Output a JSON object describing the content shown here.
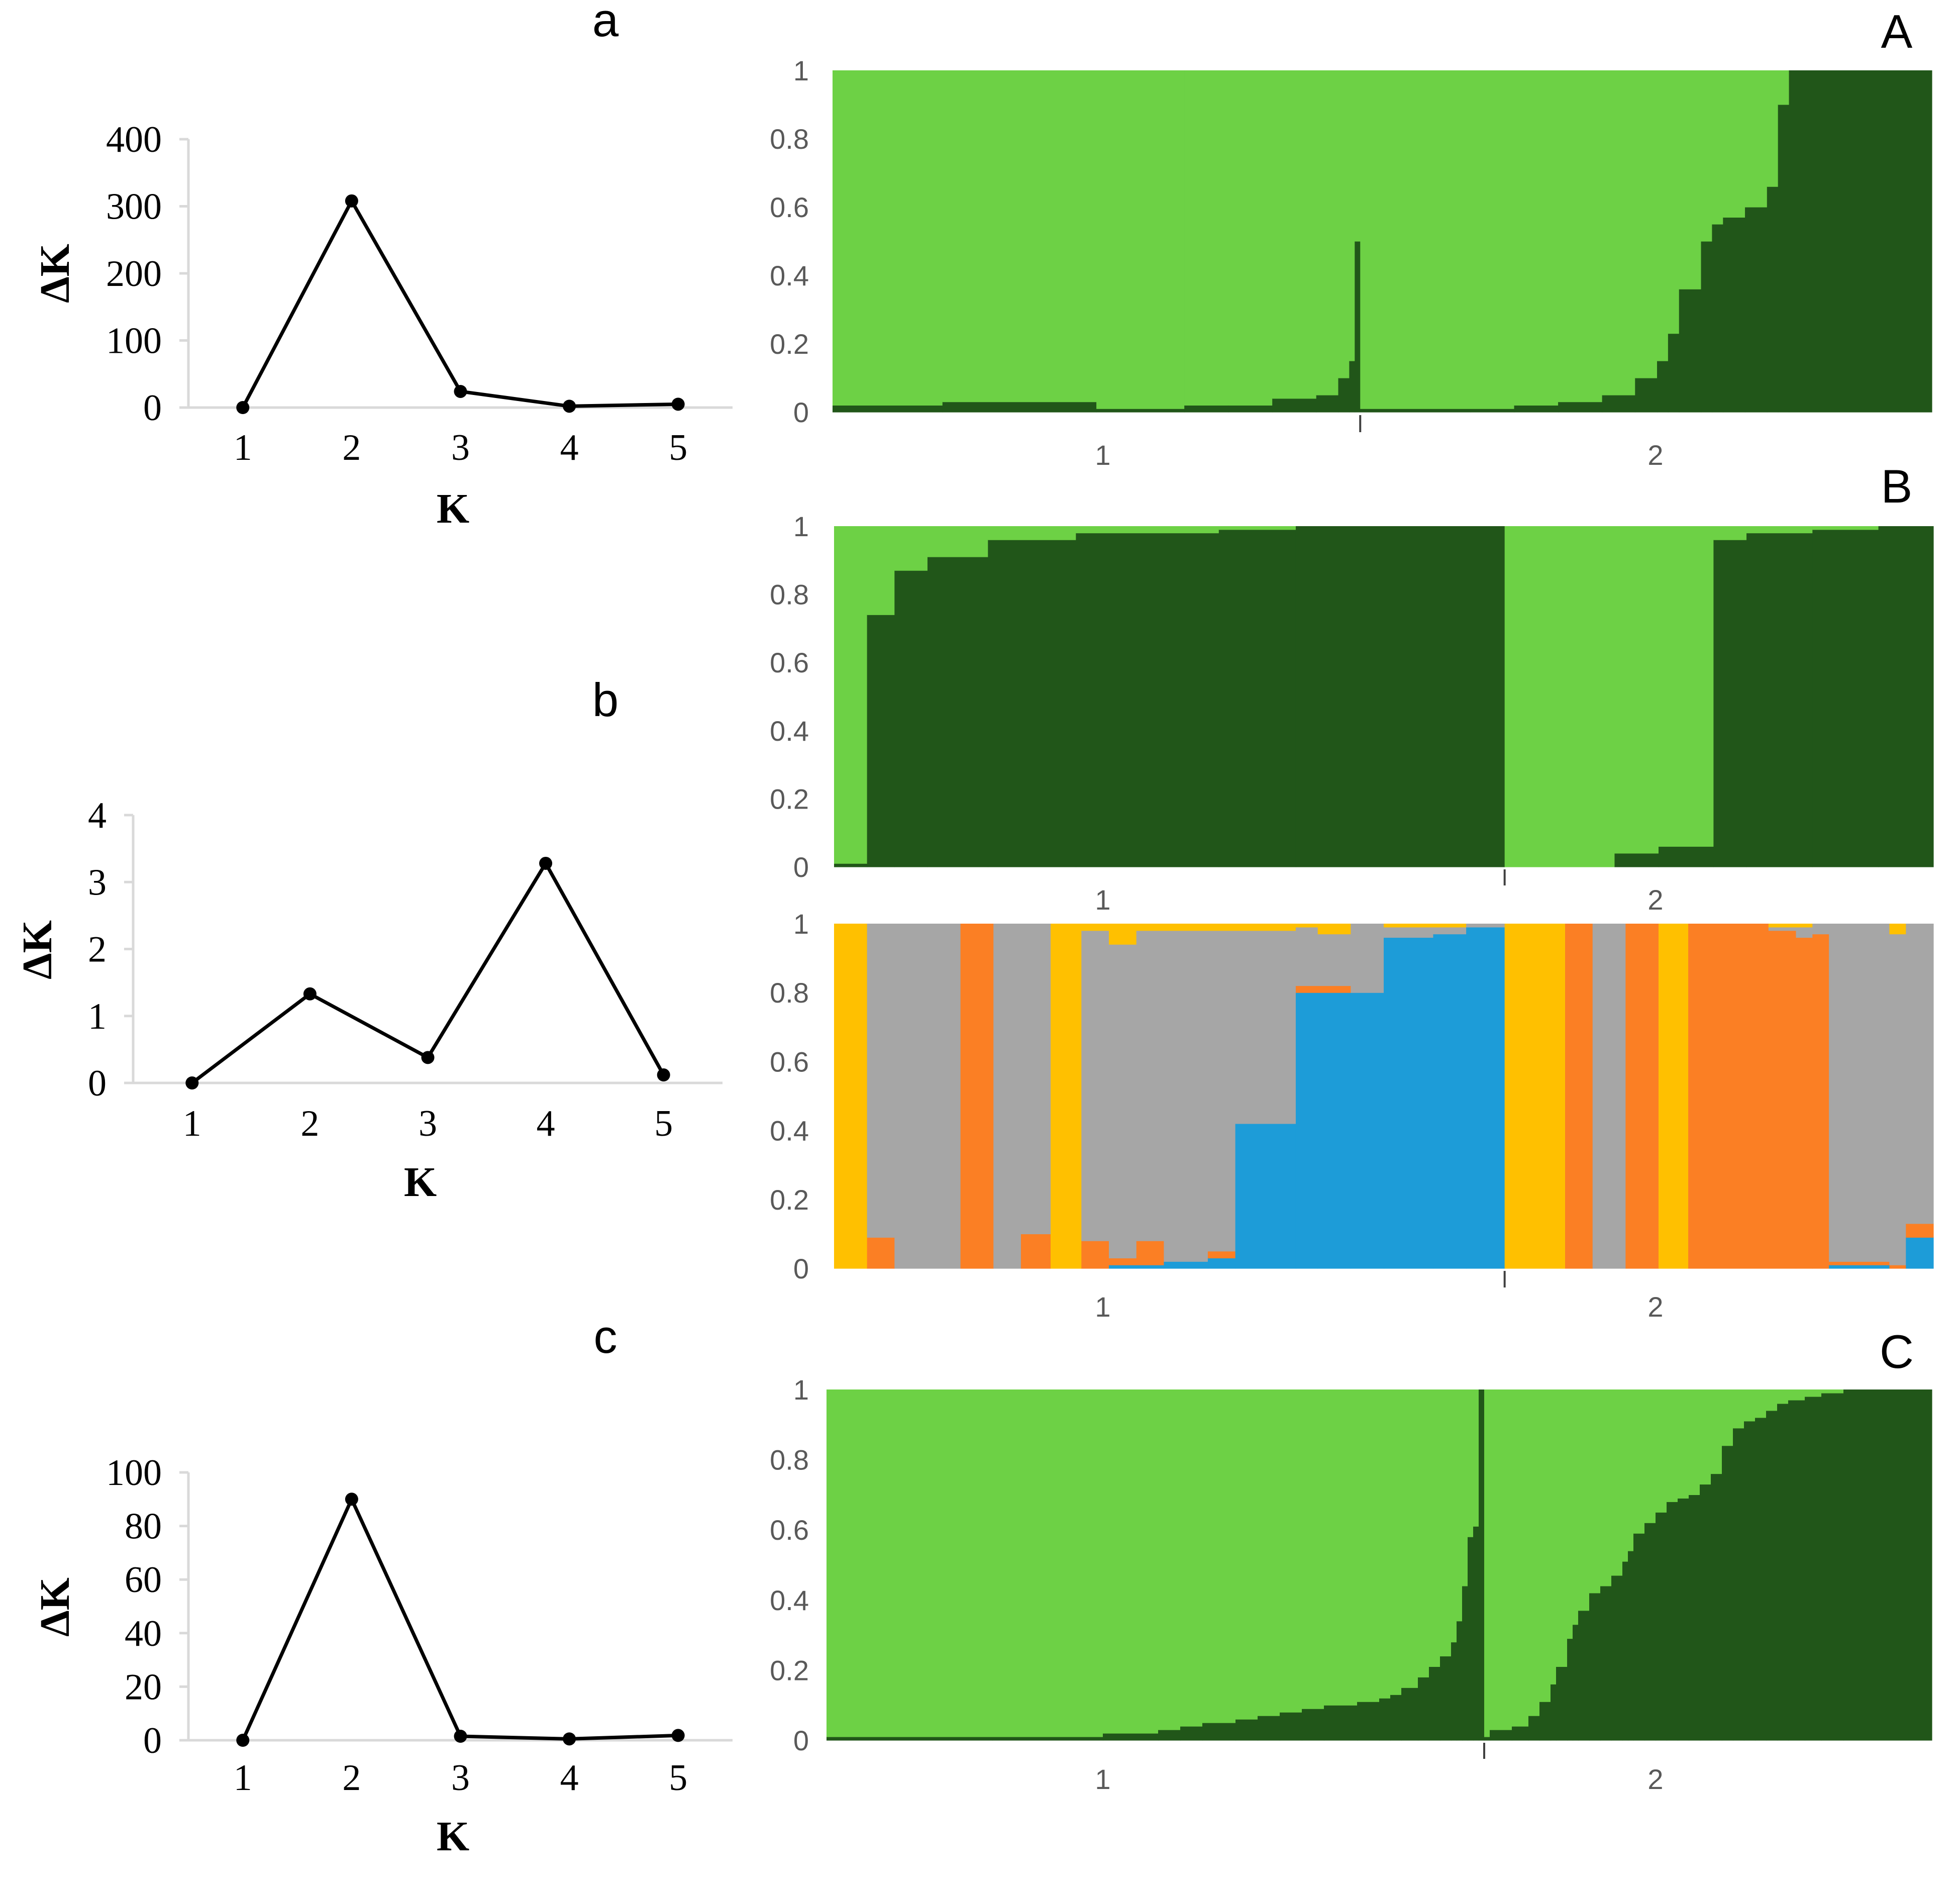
{
  "colors": {
    "light_green": "#6dd145",
    "dark_green": "#215619",
    "gray": "#a6a6a6",
    "orange": "#fb7f24",
    "yellow": "#ffc000",
    "blue": "#1d9cd8",
    "axis": "#d9d9d9",
    "line": "#000000"
  },
  "chart_data": [
    {
      "id": "a",
      "type": "line",
      "panel_label": "a",
      "xlabel": "K",
      "ylabel": "ΔK",
      "x": [
        1,
        2,
        3,
        4,
        5
      ],
      "x_tick_labels": [
        "1",
        "2",
        "3",
        "4",
        "5"
      ],
      "y": [
        0,
        308,
        24,
        2,
        5
      ],
      "ylim": [
        0,
        400
      ],
      "y_ticks": [
        0,
        100,
        200,
        300,
        400
      ],
      "y_tick_labels": [
        "0",
        "100",
        "200",
        "300",
        "400"
      ]
    },
    {
      "id": "b",
      "type": "line",
      "panel_label": "b",
      "xlabel": "K",
      "ylabel": "ΔK",
      "x": [
        1,
        2,
        3,
        4,
        5
      ],
      "x_tick_labels": [
        "1",
        "2",
        "3",
        "4",
        "5"
      ],
      "y": [
        0,
        1.33,
        0.38,
        3.28,
        0.12
      ],
      "ylim": [
        0,
        4
      ],
      "y_ticks": [
        0,
        1,
        2,
        3,
        4
      ],
      "y_tick_labels": [
        "0",
        "1",
        "2",
        "3",
        "4"
      ]
    },
    {
      "id": "c",
      "type": "line",
      "panel_label": "c",
      "xlabel": "K",
      "ylabel": "ΔK",
      "x": [
        1,
        2,
        3,
        4,
        5
      ],
      "x_tick_labels": [
        "1",
        "2",
        "3",
        "4",
        "5"
      ],
      "y": [
        0,
        90,
        1.5,
        0.5,
        1.8
      ],
      "ylim": [
        0,
        100
      ],
      "y_ticks": [
        0,
        20,
        40,
        60,
        80,
        100
      ],
      "y_tick_labels": [
        "0",
        "20",
        "40",
        "60",
        "80",
        "100"
      ]
    },
    {
      "id": "A",
      "type": "bar",
      "stacked": true,
      "panel_label": "A",
      "ylim": [
        0,
        1
      ],
      "y_tick_labels": [
        "0",
        "0.2",
        "0.4",
        "0.6",
        "0.8",
        "1"
      ],
      "group_labels": [
        "1",
        "2"
      ],
      "group_boundary": 0.48,
      "series_colors": [
        "dark_green",
        "light_green"
      ],
      "segments": [
        [
          0.0,
          0.02
        ],
        [
          0.1,
          0.03
        ],
        [
          0.24,
          0.01
        ],
        [
          0.32,
          0.02
        ],
        [
          0.36,
          0.02
        ],
        [
          0.4,
          0.04
        ],
        [
          0.44,
          0.05
        ],
        [
          0.46,
          0.1
        ],
        [
          0.47,
          0.15
        ],
        [
          0.475,
          0.5
        ],
        [
          0.48,
          0.01
        ],
        [
          0.58,
          0.01
        ],
        [
          0.62,
          0.02
        ],
        [
          0.66,
          0.03
        ],
        [
          0.7,
          0.05
        ],
        [
          0.73,
          0.1
        ],
        [
          0.75,
          0.15
        ],
        [
          0.76,
          0.23
        ],
        [
          0.77,
          0.36
        ],
        [
          0.79,
          0.5
        ],
        [
          0.8,
          0.55
        ],
        [
          0.81,
          0.57
        ],
        [
          0.83,
          0.6
        ],
        [
          0.85,
          0.66
        ],
        [
          0.86,
          0.9
        ],
        [
          0.87,
          1.0
        ]
      ]
    },
    {
      "id": "B1",
      "type": "bar",
      "stacked": true,
      "panel_label": "B",
      "ylim": [
        0,
        1
      ],
      "y_tick_labels": [
        "0",
        "0.2",
        "0.4",
        "0.6",
        "0.8",
        "1"
      ],
      "group_labels": [
        "1",
        "2"
      ],
      "group_boundary": 0.61,
      "series_colors": [
        "dark_green",
        "light_green"
      ],
      "segments": [
        [
          0.0,
          0.01
        ],
        [
          0.03,
          0.74
        ],
        [
          0.055,
          0.87
        ],
        [
          0.085,
          0.91
        ],
        [
          0.14,
          0.96
        ],
        [
          0.22,
          0.98
        ],
        [
          0.35,
          0.99
        ],
        [
          0.42,
          1.0
        ],
        [
          0.61,
          0.0
        ],
        [
          0.71,
          0.04
        ],
        [
          0.75,
          0.06
        ],
        [
          0.8,
          0.96
        ],
        [
          0.83,
          0.98
        ],
        [
          0.89,
          0.99
        ],
        [
          0.95,
          1.0
        ]
      ]
    },
    {
      "id": "B2",
      "type": "bar",
      "stacked": true,
      "ylim": [
        0,
        1
      ],
      "y_tick_labels": [
        "0",
        "0.2",
        "0.4",
        "0.6",
        "0.8",
        "1"
      ],
      "group_labels": [
        "1",
        "2"
      ],
      "group_boundary": 0.61,
      "series_colors": [
        "blue",
        "orange",
        "gray",
        "yellow"
      ],
      "segments": [
        [
          0.0,
          0,
          0,
          0,
          1
        ],
        [
          0.03,
          0,
          0.09,
          0.91,
          0
        ],
        [
          0.055,
          0,
          0,
          1,
          0
        ],
        [
          0.115,
          0,
          1,
          0,
          0
        ],
        [
          0.145,
          0,
          0,
          1,
          0
        ],
        [
          0.17,
          0,
          0.1,
          0.9,
          0
        ],
        [
          0.197,
          0,
          0,
          0,
          1
        ],
        [
          0.225,
          0,
          0.08,
          0.9,
          0.02
        ],
        [
          0.25,
          0.01,
          0.02,
          0.91,
          0.06
        ],
        [
          0.275,
          0.01,
          0.07,
          0.9,
          0.02
        ],
        [
          0.3,
          0.02,
          0,
          0.96,
          0.02
        ],
        [
          0.34,
          0.03,
          0.02,
          0.93,
          0.02
        ],
        [
          0.365,
          0.42,
          0,
          0.56,
          0.02
        ],
        [
          0.42,
          0.8,
          0.02,
          0.17,
          0.01
        ],
        [
          0.44,
          0.8,
          0.02,
          0.15,
          0.03
        ],
        [
          0.47,
          0.8,
          0,
          0.2,
          0
        ],
        [
          0.5,
          0.96,
          0,
          0.03,
          0.01
        ],
        [
          0.545,
          0.97,
          0,
          0.02,
          0.01
        ],
        [
          0.575,
          0.99,
          0,
          0.01,
          0
        ],
        [
          0.61,
          0,
          0,
          0,
          1
        ],
        [
          0.665,
          0,
          1,
          0,
          0
        ],
        [
          0.69,
          0,
          0,
          1,
          0
        ],
        [
          0.72,
          0,
          1,
          0,
          0
        ],
        [
          0.75,
          0,
          0,
          0,
          1
        ],
        [
          0.777,
          0,
          1,
          0,
          0
        ],
        [
          0.85,
          0,
          0.98,
          0.01,
          0.01
        ],
        [
          0.875,
          0,
          0.96,
          0.03,
          0.01
        ],
        [
          0.89,
          0,
          0.97,
          0.03,
          0
        ],
        [
          0.905,
          0.01,
          0.01,
          0.98,
          0
        ],
        [
          0.96,
          0,
          0.01,
          0.96,
          0.03
        ],
        [
          0.975,
          0.09,
          0.04,
          0.87,
          0
        ]
      ]
    },
    {
      "id": "C",
      "type": "bar",
      "stacked": true,
      "panel_label": "C",
      "ylim": [
        0,
        1
      ],
      "y_tick_labels": [
        "0",
        "0.2",
        "0.4",
        "0.6",
        "0.8",
        "1"
      ],
      "group_labels": [
        "1",
        "2"
      ],
      "group_boundary": 0.595,
      "series_colors": [
        "dark_green",
        "light_green"
      ],
      "segments": [
        [
          0.0,
          0.01
        ],
        [
          0.15,
          0.01
        ],
        [
          0.25,
          0.02
        ],
        [
          0.3,
          0.03
        ],
        [
          0.32,
          0.04
        ],
        [
          0.34,
          0.05
        ],
        [
          0.37,
          0.06
        ],
        [
          0.39,
          0.07
        ],
        [
          0.41,
          0.08
        ],
        [
          0.43,
          0.09
        ],
        [
          0.45,
          0.1
        ],
        [
          0.48,
          0.11
        ],
        [
          0.5,
          0.12
        ],
        [
          0.51,
          0.13
        ],
        [
          0.52,
          0.15
        ],
        [
          0.535,
          0.18
        ],
        [
          0.545,
          0.21
        ],
        [
          0.555,
          0.24
        ],
        [
          0.565,
          0.28
        ],
        [
          0.57,
          0.34
        ],
        [
          0.575,
          0.44
        ],
        [
          0.58,
          0.58
        ],
        [
          0.585,
          0.61
        ],
        [
          0.59,
          1.0
        ],
        [
          0.595,
          0.01
        ],
        [
          0.6,
          0.03
        ],
        [
          0.62,
          0.04
        ],
        [
          0.635,
          0.07
        ],
        [
          0.645,
          0.11
        ],
        [
          0.655,
          0.16
        ],
        [
          0.66,
          0.21
        ],
        [
          0.67,
          0.29
        ],
        [
          0.675,
          0.33
        ],
        [
          0.68,
          0.37
        ],
        [
          0.69,
          0.42
        ],
        [
          0.7,
          0.44
        ],
        [
          0.71,
          0.47
        ],
        [
          0.72,
          0.51
        ],
        [
          0.725,
          0.54
        ],
        [
          0.73,
          0.59
        ],
        [
          0.74,
          0.62
        ],
        [
          0.75,
          0.65
        ],
        [
          0.76,
          0.68
        ],
        [
          0.77,
          0.69
        ],
        [
          0.78,
          0.7
        ],
        [
          0.79,
          0.73
        ],
        [
          0.8,
          0.76
        ],
        [
          0.81,
          0.84
        ],
        [
          0.82,
          0.89
        ],
        [
          0.83,
          0.91
        ],
        [
          0.84,
          0.92
        ],
        [
          0.85,
          0.94
        ],
        [
          0.86,
          0.96
        ],
        [
          0.87,
          0.97
        ],
        [
          0.885,
          0.98
        ],
        [
          0.9,
          0.99
        ],
        [
          0.92,
          1.0
        ]
      ]
    }
  ]
}
